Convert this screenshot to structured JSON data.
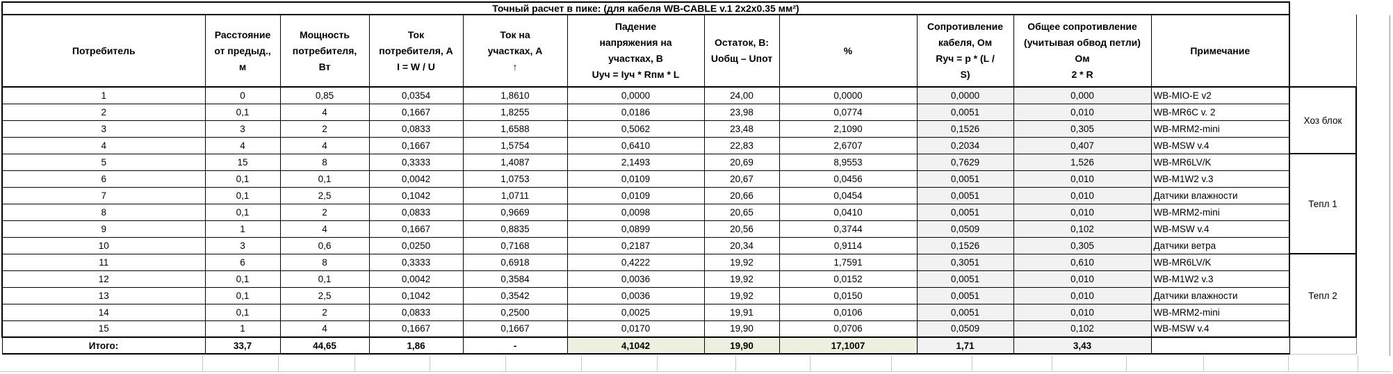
{
  "title": "Точный расчет в пике: (для кабеля WB-CABLE v.1 2x2x0.35 мм²)",
  "colors": {
    "border": "#000000",
    "shaded_column_bg": "#f2f2f2",
    "totals_highlight_bg": "#ebf1de"
  },
  "columns": [
    {
      "id": "consumer",
      "label": "Потребитель"
    },
    {
      "id": "distance",
      "label": "Расстояние\nот предыд.,\nм"
    },
    {
      "id": "power",
      "label": "Мощность\nпотребителя,\nВт"
    },
    {
      "id": "current",
      "label": "Ток\nпотребителя, А\nI = W / U"
    },
    {
      "id": "segment-current",
      "label": "Ток на\nучастках, А\n↑"
    },
    {
      "id": "voltage-drop",
      "label": "Падение\nнапряжения на\nучастках, В\nUуч = Iуч * Rпм * L"
    },
    {
      "id": "remainder",
      "label": "Остаток, В:\nUобщ – Uпот"
    },
    {
      "id": "percent",
      "label": "%"
    },
    {
      "id": "cable-resistance",
      "label": "Сопротивление\nкабеля, Ом\nRуч = p * (L /\nS)"
    },
    {
      "id": "total-resistance",
      "label": "Общее сопротивление\n(учитывая обвод петли)\nОм\n2 * R"
    },
    {
      "id": "note",
      "label": "Примечание"
    }
  ],
  "rows": [
    {
      "cells": [
        "1",
        "0",
        "0,85",
        "0,0354",
        "1,8610",
        "0,0000",
        "24,00",
        "0,0000",
        "0,0000",
        "0,000",
        "WB-MIO-E v2"
      ]
    },
    {
      "cells": [
        "2",
        "0,1",
        "4",
        "0,1667",
        "1,8255",
        "0,0186",
        "23,98",
        "0,0774",
        "0,0051",
        "0,010",
        "WB-MR6C v. 2"
      ]
    },
    {
      "cells": [
        "3",
        "3",
        "2",
        "0,0833",
        "1,6588",
        "0,5062",
        "23,48",
        "2,1090",
        "0,1526",
        "0,305",
        "WB-MRM2-mini"
      ]
    },
    {
      "cells": [
        "4",
        "4",
        "4",
        "0,1667",
        "1,5754",
        "0,6410",
        "22,83",
        "2,6707",
        "0,2034",
        "0,407",
        "WB-MSW v.4"
      ]
    },
    {
      "cells": [
        "5",
        "15",
        "8",
        "0,3333",
        "1,4087",
        "2,1493",
        "20,69",
        "8,9553",
        "0,7629",
        "1,526",
        "WB-MR6LV/K"
      ]
    },
    {
      "cells": [
        "6",
        "0,1",
        "0,1",
        "0,0042",
        "1,0753",
        "0,0109",
        "20,67",
        "0,0456",
        "0,0051",
        "0,010",
        "WB-M1W2 v.3"
      ]
    },
    {
      "cells": [
        "7",
        "0,1",
        "2,5",
        "0,1042",
        "1,0711",
        "0,0109",
        "20,66",
        "0,0454",
        "0,0051",
        "0,010",
        "Датчики влажности"
      ]
    },
    {
      "cells": [
        "8",
        "0,1",
        "2",
        "0,0833",
        "0,9669",
        "0,0098",
        "20,65",
        "0,0410",
        "0,0051",
        "0,010",
        "WB-MRM2-mini"
      ]
    },
    {
      "cells": [
        "9",
        "1",
        "4",
        "0,1667",
        "0,8835",
        "0,0899",
        "20,56",
        "0,3744",
        "0,0509",
        "0,102",
        "WB-MSW v.4"
      ]
    },
    {
      "cells": [
        "10",
        "3",
        "0,6",
        "0,0250",
        "0,7168",
        "0,2187",
        "20,34",
        "0,9114",
        "0,1526",
        "0,305",
        "Датчики ветра"
      ]
    },
    {
      "cells": [
        "11",
        "6",
        "8",
        "0,3333",
        "0,6918",
        "0,4222",
        "19,92",
        "1,7591",
        "0,3051",
        "0,610",
        "WB-MR6LV/K"
      ]
    },
    {
      "cells": [
        "12",
        "0,1",
        "0,1",
        "0,0042",
        "0,3584",
        "0,0036",
        "19,92",
        "0,0152",
        "0,0051",
        "0,010",
        "WB-M1W2 v.3"
      ]
    },
    {
      "cells": [
        "13",
        "0,1",
        "2,5",
        "0,1042",
        "0,3542",
        "0,0036",
        "19,92",
        "0,0150",
        "0,0051",
        "0,010",
        "Датчики влажности"
      ]
    },
    {
      "cells": [
        "14",
        "0,1",
        "2",
        "0,0833",
        "0,2500",
        "0,0025",
        "19,91",
        "0,0106",
        "0,0051",
        "0,010",
        "WB-MRM2-mini"
      ]
    },
    {
      "cells": [
        "15",
        "1",
        "4",
        "0,1667",
        "0,1667",
        "0,0170",
        "19,90",
        "0,0706",
        "0,0509",
        "0,102",
        "WB-MSW v.4"
      ]
    }
  ],
  "groups": [
    {
      "label": "Хоз блок",
      "from": 0,
      "span": 4
    },
    {
      "label": "Тепл 1",
      "from": 4,
      "span": 6
    },
    {
      "label": "Тепл 2",
      "from": 10,
      "span": 5
    }
  ],
  "total_row": {
    "label": "Итого:",
    "cells": [
      "33,7",
      "44,65",
      "1,86",
      "-",
      "4,1042",
      "19,90",
      "17,1007",
      "1,71",
      "3,43",
      ""
    ]
  }
}
